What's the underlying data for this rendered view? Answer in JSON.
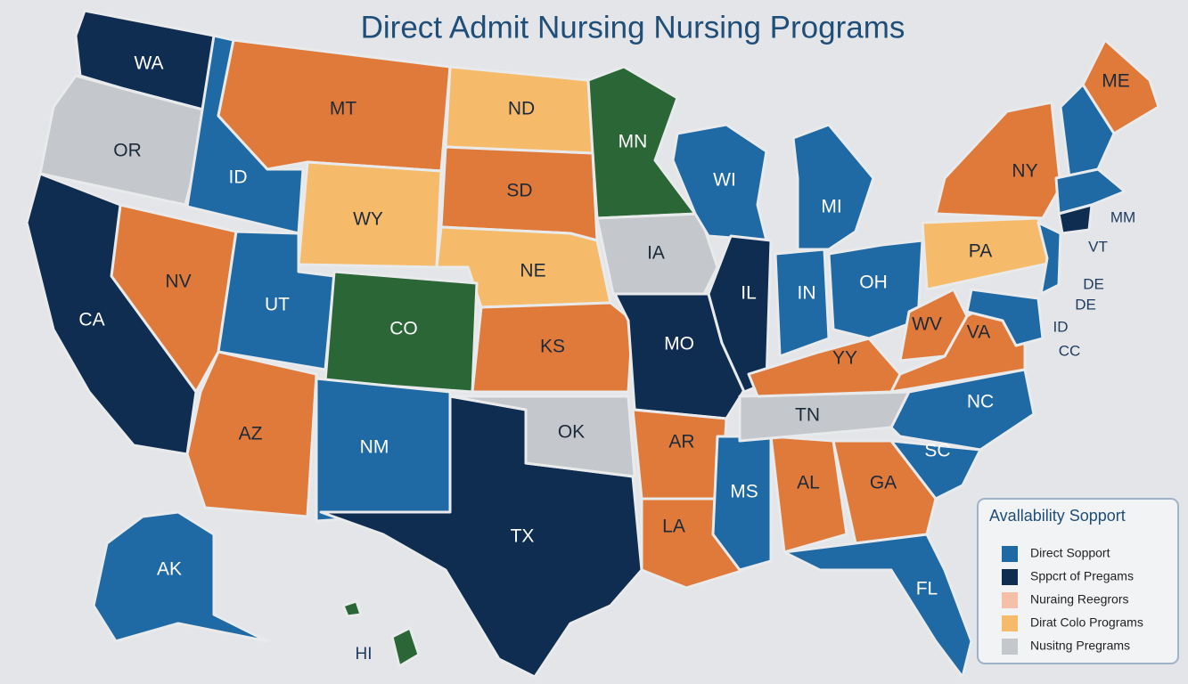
{
  "title": "Direct Admit Nursing Nursing Programs",
  "states": [
    {
      "label": "WA",
      "color": "#0f2d50"
    },
    {
      "label": "OR",
      "color": "#c4c7cb"
    },
    {
      "label": "ID",
      "color": "#1f6aa5"
    },
    {
      "label": "MT",
      "color": "#e07a3a"
    },
    {
      "label": "ND",
      "color": "#f6bb6a"
    },
    {
      "label": "MN",
      "color": "#2b6637"
    },
    {
      "label": "WY",
      "color": "#f6bb6a"
    },
    {
      "label": "SD",
      "color": "#e07a3a"
    },
    {
      "label": "NE",
      "color": "#f6bb6a"
    },
    {
      "label": "IA",
      "color": "#c4c7cb"
    },
    {
      "label": "WI",
      "color": "#1f6aa5"
    },
    {
      "label": "MI",
      "color": "#1f6aa5"
    },
    {
      "label": "NV",
      "color": "#e07a3a"
    },
    {
      "label": "CA",
      "color": "#0f2d50"
    },
    {
      "label": "UT",
      "color": "#1f6aa5"
    },
    {
      "label": "CO",
      "color": "#2b6637"
    },
    {
      "label": "KS",
      "color": "#e07a3a"
    },
    {
      "label": "MO",
      "color": "#0f2d50"
    },
    {
      "label": "IL",
      "color": "#0f2d50"
    },
    {
      "label": "IN",
      "color": "#1f6aa5"
    },
    {
      "label": "OH",
      "color": "#1f6aa5"
    },
    {
      "label": "PA",
      "color": "#f6bb6a"
    },
    {
      "label": "NY",
      "color": "#e07a3a"
    },
    {
      "label": "ME",
      "color": "#e07a3a"
    },
    {
      "label": "AZ",
      "color": "#e07a3a"
    },
    {
      "label": "NM",
      "color": "#1f6aa5"
    },
    {
      "label": "TX",
      "color": "#0f2d50"
    },
    {
      "label": "OK",
      "color": "#c4c7cb"
    },
    {
      "label": "AR",
      "color": "#e07a3a"
    },
    {
      "label": "LA",
      "color": "#e07a3a"
    },
    {
      "label": "MS",
      "color": "#1f6aa5"
    },
    {
      "label": "AL",
      "color": "#e07a3a"
    },
    {
      "label": "GA",
      "color": "#e07a3a"
    },
    {
      "label": "TN",
      "color": "#c4c7cb"
    },
    {
      "label": "YY",
      "color": "#e07a3a"
    },
    {
      "label": "WV",
      "color": "#e07a3a"
    },
    {
      "label": "VA",
      "color": "#e07a3a"
    },
    {
      "label": "NC",
      "color": "#1f6aa5"
    },
    {
      "label": "SC",
      "color": "#1f6aa5"
    },
    {
      "label": "FL",
      "color": "#1f6aa5"
    },
    {
      "label": "AK",
      "color": "#1f6aa5"
    }
  ],
  "side_labels": [
    "HI",
    "MM",
    "VT",
    "DE",
    "DE",
    "ID",
    "CC"
  ],
  "legend": {
    "title": "Avallability Sopport",
    "items": [
      {
        "label": "Direct Sopport",
        "color": "#1f6aa5"
      },
      {
        "label": "Sppcrt of Pregams",
        "color": "#0f2d50"
      },
      {
        "label": "Nuraing Reegrors",
        "color": "#f4c0a8"
      },
      {
        "label": "Dirat Colo Programs",
        "color": "#f6bb6a"
      },
      {
        "label": "Nusitng Pregrams",
        "color": "#c4c7cb"
      }
    ]
  }
}
